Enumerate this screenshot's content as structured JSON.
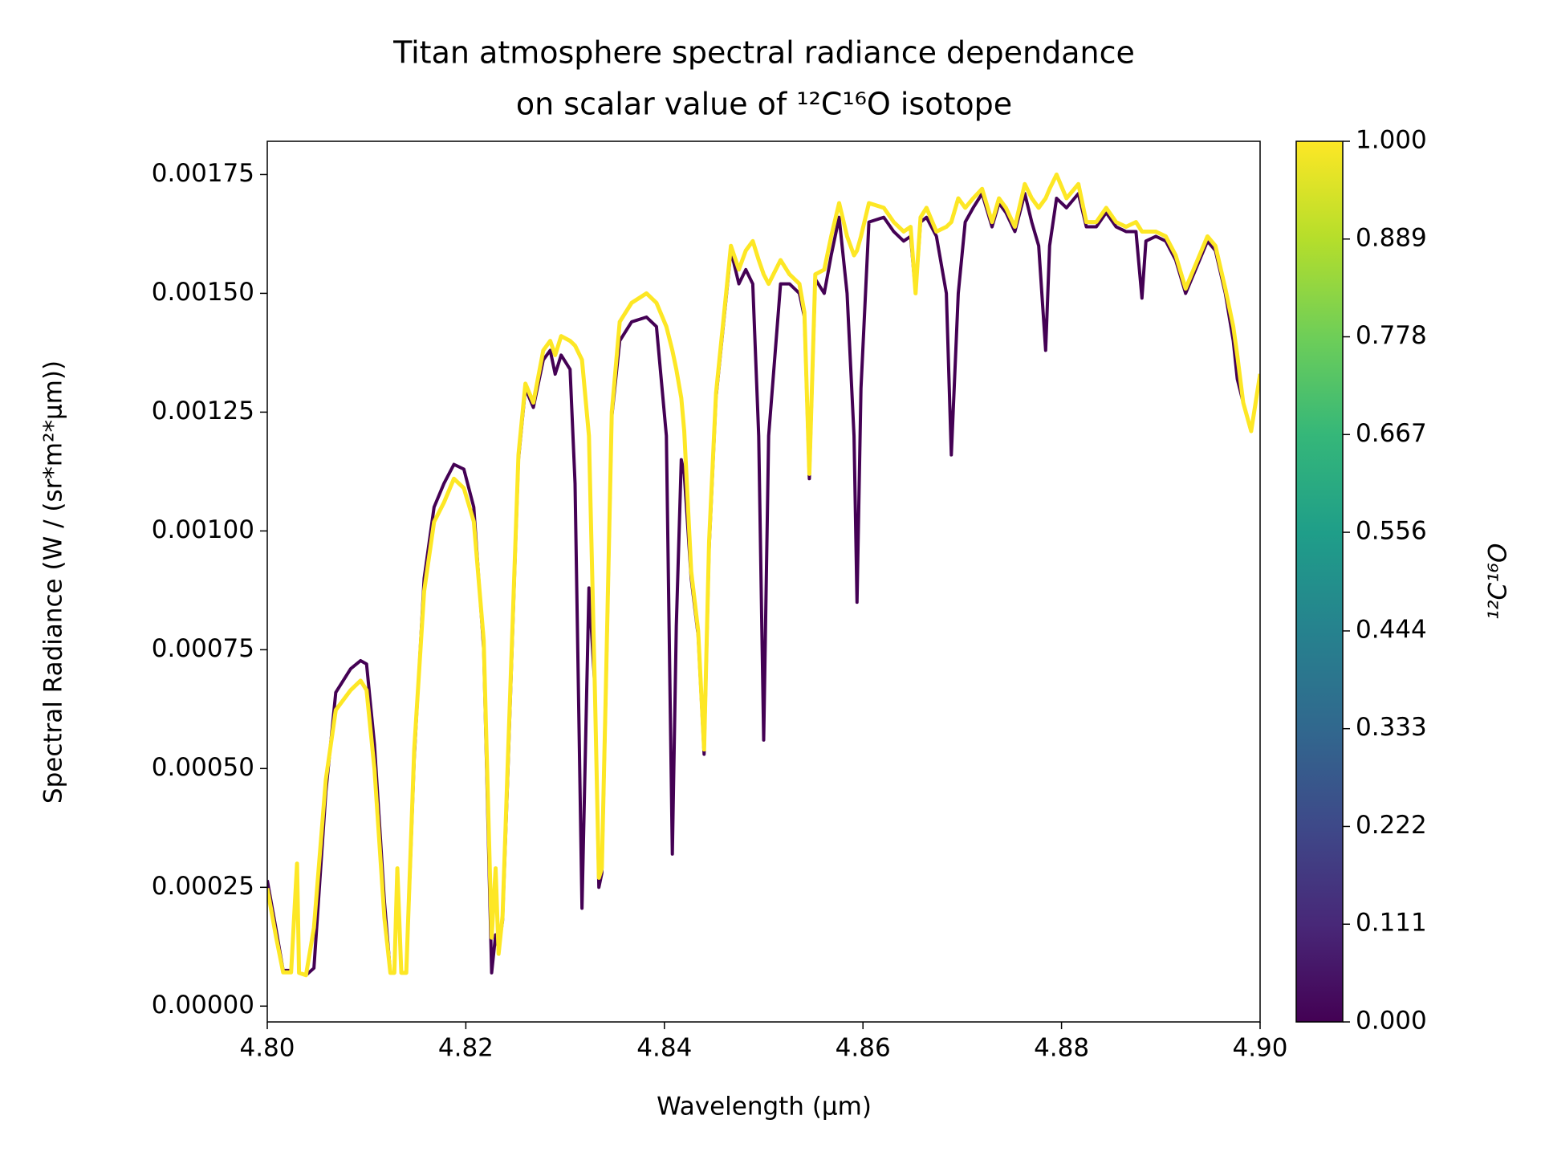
{
  "chart_data": {
    "type": "line",
    "title": [
      "Titan atmosphere spectral radiance dependance",
      "on scalar value of ¹²C¹⁶O  isotope"
    ],
    "x_label": "Wavelength (μm)",
    "y_label": "Spectral Radiance (W / (sr*m²*μm))",
    "xlim": [
      4.8,
      4.9
    ],
    "ylim": [
      -3.33e-05,
      0.00182
    ],
    "xticks": [
      {
        "value": 4.8,
        "label": "4.80"
      },
      {
        "value": 4.82,
        "label": "4.82"
      },
      {
        "value": 4.84,
        "label": "4.84"
      },
      {
        "value": 4.86,
        "label": "4.86"
      },
      {
        "value": 4.88,
        "label": "4.88"
      },
      {
        "value": 4.9,
        "label": "4.90"
      }
    ],
    "yticks": [
      {
        "value": 0,
        "label": "0.00000"
      },
      {
        "value": 0.00025,
        "label": "0.00025"
      },
      {
        "value": 0.0005,
        "label": "0.00050"
      },
      {
        "value": 0.00075,
        "label": "0.00075"
      },
      {
        "value": 0.001,
        "label": "0.00100"
      },
      {
        "value": 0.00125,
        "label": "0.00125"
      },
      {
        "value": 0.0015,
        "label": "0.00150"
      },
      {
        "value": 0.00175,
        "label": "0.00175"
      }
    ],
    "x": [
      4.8,
      4.8009,
      4.8016,
      4.8024,
      4.803,
      4.8032,
      4.8039,
      4.8047,
      4.8059,
      4.8069,
      4.8084,
      4.8094,
      4.81,
      4.8108,
      4.8118,
      4.8124,
      4.8128,
      4.8131,
      4.8135,
      4.814,
      4.8148,
      4.8158,
      4.8168,
      4.8178,
      4.8188,
      4.8198,
      4.8208,
      4.8218,
      4.8226,
      4.823,
      4.8233,
      4.8237,
      4.8242,
      4.8253,
      4.826,
      4.8268,
      4.8278,
      4.8285,
      4.829,
      4.8296,
      4.8305,
      4.831,
      4.8317,
      4.8324,
      4.833,
      4.8334,
      4.8337,
      4.8341,
      4.8347,
      4.8355,
      4.8367,
      4.8382,
      4.8392,
      4.8402,
      4.8408,
      4.8412,
      4.8417,
      4.842,
      4.8427,
      4.8434,
      4.844,
      4.8445,
      4.8452,
      4.8467,
      4.8475,
      4.8482,
      4.8489,
      4.8495,
      4.85,
      4.8505,
      4.8517,
      4.8526,
      4.8536,
      4.8541,
      4.8546,
      4.8552,
      4.8561,
      4.8568,
      4.8576,
      4.8584,
      4.8591,
      4.8594,
      4.8598,
      4.8606,
      4.8621,
      4.8631,
      4.8641,
      4.8648,
      4.8653,
      4.8658,
      4.8664,
      4.8674,
      4.8684,
      4.8689,
      4.8696,
      4.8703,
      4.8711,
      4.872,
      4.873,
      4.8737,
      4.8744,
      4.8753,
      4.8763,
      4.877,
      4.8777,
      4.8784,
      4.8788,
      4.8795,
      4.8805,
      4.8817,
      4.8825,
      4.8835,
      4.8845,
      4.8855,
      4.8865,
      4.8875,
      4.8881,
      4.8885,
      4.8895,
      4.8905,
      4.8915,
      4.8925,
      4.8935,
      4.8947,
      4.8955,
      4.8965,
      4.8973,
      4.8977,
      4.8983,
      4.8991,
      4.9
    ],
    "series": [
      {
        "color": "#440154",
        "values": [
          0.000265,
          0.00016,
          7.5e-05,
          7.5e-05,
          0.00029,
          7e-05,
          6.5e-05,
          8e-05,
          0.00045,
          0.00066,
          0.00071,
          0.000727,
          0.00072,
          0.00055,
          0.00022,
          7e-05,
          7e-05,
          0.00028,
          7e-05,
          7e-05,
          0.00052,
          0.0009,
          0.00105,
          0.0011,
          0.00114,
          0.00113,
          0.00105,
          0.00075,
          7e-05,
          0.00015,
          0.00012,
          0.00018,
          0.00047,
          0.00115,
          0.0013,
          0.00126,
          0.00136,
          0.00138,
          0.00133,
          0.00137,
          0.00134,
          0.0011,
          0.000206,
          0.00088,
          0.00067,
          0.00025,
          0.00028,
          0.00065,
          0.00124,
          0.0014,
          0.00144,
          0.00145,
          0.00143,
          0.0012,
          0.00032,
          0.0008,
          0.00115,
          0.00112,
          0.0009,
          0.00078,
          0.00053,
          0.00096,
          0.00128,
          0.00159,
          0.00152,
          0.00155,
          0.00152,
          0.0012,
          0.00056,
          0.0012,
          0.00152,
          0.00152,
          0.0015,
          0.00145,
          0.00111,
          0.00153,
          0.0015,
          0.00158,
          0.00166,
          0.0015,
          0.0012,
          0.00085,
          0.0013,
          0.00165,
          0.00166,
          0.00163,
          0.00161,
          0.00162,
          0.0015,
          0.00165,
          0.00166,
          0.00162,
          0.0015,
          0.00116,
          0.0015,
          0.00165,
          0.00168,
          0.00171,
          0.00164,
          0.00169,
          0.00167,
          0.00163,
          0.00171,
          0.00165,
          0.0016,
          0.00138,
          0.0016,
          0.0017,
          0.00168,
          0.00171,
          0.00164,
          0.00164,
          0.00167,
          0.00164,
          0.00163,
          0.00163,
          0.00149,
          0.00161,
          0.00162,
          0.00161,
          0.00157,
          0.0015,
          0.00155,
          0.00161,
          0.00159,
          0.0015,
          0.0014,
          0.00132,
          0.00127,
          0.00121,
          0.00133
        ]
      },
      {
        "color": "#fde725",
        "values": [
          0.000248,
          0.000144,
          7.1e-05,
          7.1e-05,
          0.0003,
          7e-05,
          6.5e-05,
          0.000165,
          0.000477,
          0.000623,
          0.000665,
          0.000685,
          0.000665,
          0.000498,
          0.000185,
          7e-05,
          7e-05,
          0.00029,
          7e-05,
          7e-05,
          0.00054,
          0.000873,
          0.001019,
          0.00106,
          0.00111,
          0.00109,
          0.00102,
          0.00077,
          0.000144,
          0.00029,
          0.00011,
          0.00019,
          0.000498,
          0.00116,
          0.00131,
          0.00127,
          0.00138,
          0.0014,
          0.00137,
          0.00141,
          0.0014,
          0.00139,
          0.00136,
          0.0012,
          0.000665,
          0.00027,
          0.00029,
          0.000665,
          0.00125,
          0.00144,
          0.00148,
          0.0015,
          0.00148,
          0.00143,
          0.00138,
          0.00134,
          0.00128,
          0.00121,
          0.000915,
          0.00079,
          0.00054,
          0.000977,
          0.00129,
          0.0016,
          0.00155,
          0.00159,
          0.00161,
          0.00157,
          0.00154,
          0.00152,
          0.00157,
          0.00154,
          0.00152,
          0.00146,
          0.00112,
          0.00154,
          0.00155,
          0.00162,
          0.00169,
          0.00162,
          0.00158,
          0.00159,
          0.00162,
          0.00169,
          0.00168,
          0.00165,
          0.00163,
          0.00164,
          0.0015,
          0.00166,
          0.00168,
          0.00163,
          0.00164,
          0.00165,
          0.0017,
          0.00168,
          0.0017,
          0.00172,
          0.00165,
          0.0017,
          0.00168,
          0.00164,
          0.00173,
          0.0017,
          0.00168,
          0.0017,
          0.00172,
          0.00175,
          0.0017,
          0.00173,
          0.00165,
          0.00165,
          0.00168,
          0.00165,
          0.00164,
          0.00165,
          0.00163,
          0.00163,
          0.00163,
          0.00162,
          0.00158,
          0.00151,
          0.00156,
          0.00162,
          0.0016,
          0.00151,
          0.00143,
          0.00137,
          0.00127,
          0.00121,
          0.00133
        ]
      }
    ],
    "colorbar": {
      "label": "¹²C¹⁶O",
      "lim": [
        0,
        1
      ],
      "ticks": [
        {
          "value": 0,
          "label": "0.000"
        },
        0.111,
        0.222,
        0.333,
        0.444,
        0.556,
        0.667,
        0.778,
        0.889,
        {
          "value": 1,
          "label": "1.000"
        }
      ],
      "colors": [
        "#440154",
        "#482878",
        "#3e4989",
        "#31688e",
        "#26828e",
        "#1f9e89",
        "#35b779",
        "#6ece58",
        "#b5de2b",
        "#fde725"
      ]
    }
  }
}
